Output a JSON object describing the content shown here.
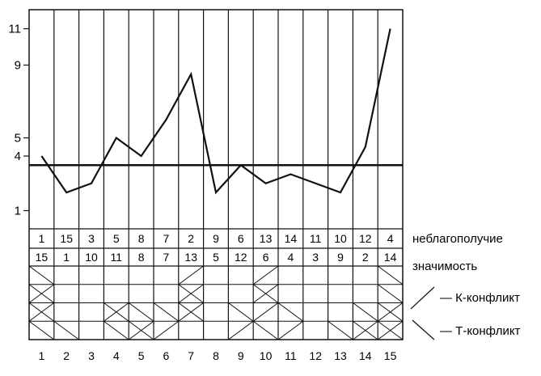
{
  "chart_data": {
    "type": "line",
    "x": [
      1,
      2,
      3,
      4,
      5,
      6,
      7,
      8,
      9,
      10,
      11,
      12,
      13,
      14,
      15
    ],
    "values": [
      4,
      2,
      2.5,
      5,
      4,
      6,
      8.5,
      2,
      3.5,
      2.5,
      3,
      2.5,
      2,
      4.5,
      11
    ],
    "threshold": 3.5,
    "ylim": [
      0,
      12
    ],
    "yticks": [
      "1",
      "4",
      "5",
      "9",
      "11"
    ],
    "rows": [
      {
        "label": "неблагополучие",
        "values": [
          "1",
          "15",
          "3",
          "5",
          "8",
          "7",
          "2",
          "9",
          "6",
          "13",
          "14",
          "11",
          "10",
          "12",
          "4"
        ]
      },
      {
        "label": "значимость",
        "values": [
          "15",
          "1",
          "10",
          "11",
          "8",
          "7",
          "13",
          "5",
          "12",
          "6",
          "4",
          "3",
          "9",
          "2",
          "14"
        ]
      }
    ],
    "k_conflict_label": "К-конфликт",
    "t_conflict_label": "Т-конфликт",
    "column_labels": [
      "1",
      "2",
      "3",
      "4",
      "5",
      "6",
      "7",
      "8",
      "9",
      "10",
      "11",
      "12",
      "13",
      "14",
      "15"
    ]
  }
}
